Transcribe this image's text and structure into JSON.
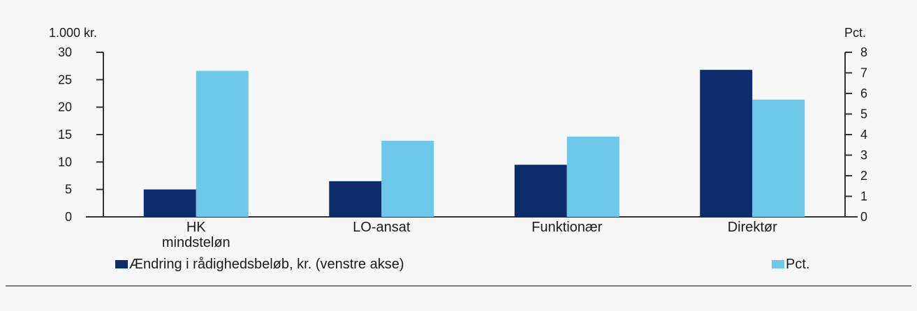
{
  "chart_data": {
    "type": "bar",
    "title": "",
    "categories": [
      "HK\nmindsteløn",
      "LO-ansat",
      "Funktionær",
      "Direktør"
    ],
    "series": [
      {
        "name": "Ændring i rådighedsbeløb, kr. (venstre akse)",
        "axis": "left",
        "color": "#0d2c6c",
        "values": [
          5,
          6.5,
          9.5,
          26.8
        ]
      },
      {
        "name": "Pct.",
        "axis": "right",
        "color": "#6ec8ea",
        "values": [
          7.1,
          3.7,
          3.9,
          5.7
        ]
      }
    ],
    "left_axis": {
      "unit_label": "1.000 kr.",
      "ylim": [
        0,
        30
      ],
      "ticks": [
        "0",
        "5",
        "10",
        "15",
        "20",
        "25",
        "30"
      ]
    },
    "right_axis": {
      "unit_label": "Pct.",
      "ylim": [
        0,
        8
      ],
      "ticks": [
        "0",
        "1",
        "2",
        "3",
        "4",
        "5",
        "6",
        "7",
        "8"
      ]
    },
    "legend_position": "bottom",
    "grid": false
  },
  "colors": {
    "background": "#f7f7f8",
    "axis": "#333333",
    "divider": "#555555"
  }
}
